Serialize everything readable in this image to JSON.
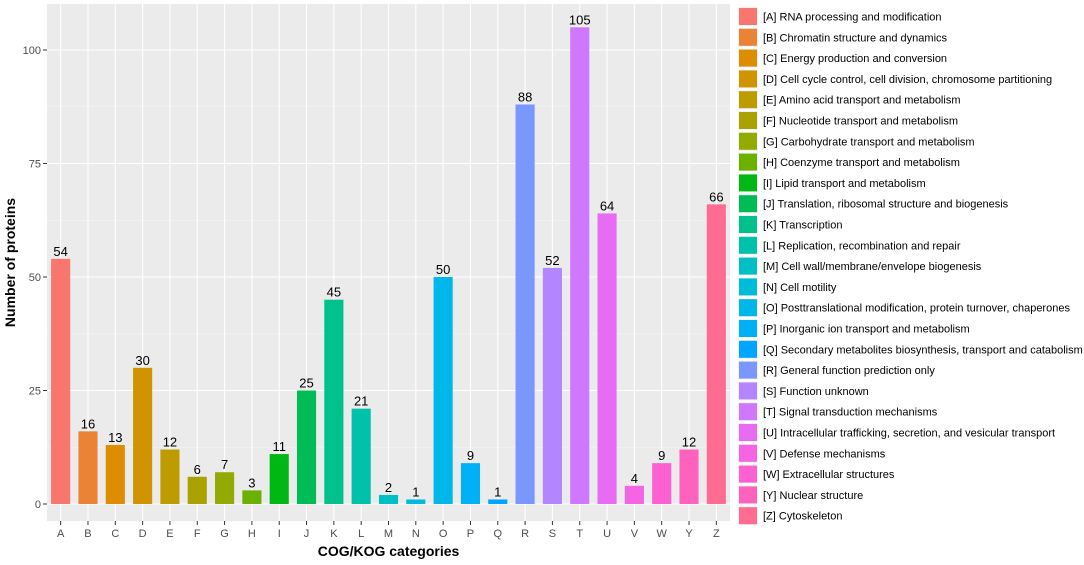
{
  "chart_data": {
    "type": "bar",
    "title": "",
    "xlabel": "COG/KOG categories",
    "ylabel": "Number of proteins",
    "ylim": [
      0,
      110
    ],
    "yticks": [
      0,
      25,
      50,
      75,
      100
    ],
    "grid": true,
    "legend_position": "right",
    "categories": [
      "A",
      "B",
      "C",
      "D",
      "E",
      "F",
      "G",
      "H",
      "I",
      "J",
      "K",
      "L",
      "M",
      "N",
      "O",
      "P",
      "Q",
      "R",
      "S",
      "T",
      "U",
      "V",
      "W",
      "Y",
      "Z"
    ],
    "values": [
      54,
      16,
      13,
      30,
      12,
      6,
      7,
      3,
      11,
      25,
      45,
      21,
      2,
      1,
      50,
      9,
      1,
      88,
      52,
      105,
      64,
      4,
      9,
      12,
      66
    ],
    "colors": [
      "#F8766D",
      "#EB8336",
      "#DE8C00",
      "#CF9400",
      "#BE9C00",
      "#AAA200",
      "#93AA00",
      "#6BB100",
      "#00B813",
      "#00BC56",
      "#00C08B",
      "#00C1AA",
      "#00C0C6",
      "#00BCD8",
      "#00B7E9",
      "#00B0F6",
      "#00A5FF",
      "#7997FF",
      "#B385FF",
      "#CF78FF",
      "#E76BF3",
      "#F564E3",
      "#FD61D1",
      "#FF62BC",
      "#FF6C91"
    ],
    "legend_entries": [
      "[A] RNA processing and modification",
      "[B] Chromatin structure and dynamics",
      "[C] Energy production and conversion",
      "[D] Cell cycle control, cell division, chromosome partitioning",
      "[E] Amino acid transport and metabolism",
      "[F] Nucleotide transport and metabolism",
      "[G] Carbohydrate transport and metabolism",
      "[H] Coenzyme transport and metabolism",
      "[I] Lipid transport and metabolism",
      "[J] Translation, ribosomal structure and biogenesis",
      "[K] Transcription",
      "[L] Replication, recombination and repair",
      "[M] Cell wall/membrane/envelope biogenesis",
      "[N] Cell motility",
      "[O] Posttranslational modification, protein turnover, chaperones",
      "[P] Inorganic ion transport and metabolism",
      "[Q] Secondary metabolites biosynthesis, transport and catabolism",
      "[R] General function prediction only",
      "[S] Function unknown",
      "[T] Signal transduction mechanisms",
      "[U] Intracellular trafficking, secretion, and vesicular transport",
      "[V] Defense mechanisms",
      "[W] Extracellular structures",
      "[Y] Nuclear structure",
      "[Z] Cytoskeleton"
    ]
  }
}
